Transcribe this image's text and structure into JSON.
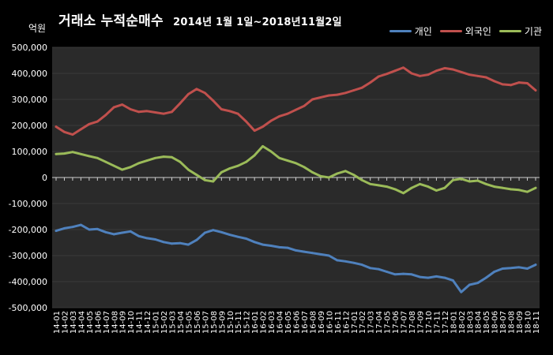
{
  "title": "거래소 누적순매수",
  "subtitle": "2014년 1월 1일~2018년11월2일",
  "unit": "억원",
  "colors": {
    "individual": "#4F81BD",
    "foreign": "#C0504D",
    "institution": "#9BBB59",
    "plot_bg": "#2a2a2a"
  },
  "legend": [
    {
      "label": "개인",
      "color": "#4F81BD"
    },
    {
      "label": "외국인",
      "color": "#C0504D"
    },
    {
      "label": "기관",
      "color": "#9BBB59"
    }
  ],
  "chart_data": {
    "type": "line",
    "title": "거래소 누적순매수 2014년 1월 1일~2018년11월2일",
    "ylabel": "억원",
    "ylim": [
      -500000,
      500000
    ],
    "yticks": [
      500000,
      400000,
      300000,
      200000,
      100000,
      0,
      -100000,
      -200000,
      -300000,
      -400000,
      -500000
    ],
    "ytick_labels": [
      "500,000",
      "400,000",
      "300,000",
      "200,000",
      "100,000",
      "0",
      "-100,000",
      "-200,000",
      "-300,000",
      "-400,000",
      "-500,000"
    ],
    "grid": "horizontal",
    "legend_position": "top-right",
    "categories": [
      "14-01",
      "14-02",
      "14-03",
      "14-04",
      "14-05",
      "14-06",
      "14-07",
      "14-08",
      "14-09",
      "14-10",
      "14-11",
      "14-12",
      "15-01",
      "15-02",
      "15-03",
      "15-04",
      "15-05",
      "15-06",
      "15-07",
      "15-08",
      "15-09",
      "15-10",
      "15-11",
      "15-12",
      "16-01",
      "16-02",
      "16-03",
      "16-04",
      "16-05",
      "16-06",
      "16-07",
      "16-08",
      "16-09",
      "16-10",
      "16-11",
      "16-12",
      "17-01",
      "17-02",
      "17-03",
      "17-04",
      "17-05",
      "17-06",
      "17-07",
      "17-08",
      "17-09",
      "17-10",
      "17-11",
      "17-12",
      "18-01",
      "18-02",
      "18-03",
      "18-04",
      "18-05",
      "18-06",
      "18-07",
      "18-08",
      "18-09",
      "18-10",
      "18-11"
    ],
    "series": [
      {
        "name": "개인",
        "key": "individual",
        "values": [
          -205000,
          -195000,
          -190000,
          -182000,
          -200000,
          -198000,
          -210000,
          -218000,
          -212000,
          -207000,
          -225000,
          -233000,
          -238000,
          -248000,
          -254000,
          -252000,
          -258000,
          -240000,
          -212000,
          -202000,
          -210000,
          -220000,
          -228000,
          -235000,
          -248000,
          -258000,
          -262000,
          -268000,
          -270000,
          -280000,
          -285000,
          -290000,
          -295000,
          -300000,
          -318000,
          -322000,
          -328000,
          -335000,
          -348000,
          -352000,
          -362000,
          -372000,
          -370000,
          -372000,
          -382000,
          -385000,
          -380000,
          -385000,
          -395000,
          -440000,
          -412000,
          -405000,
          -385000,
          -362000,
          -350000,
          -348000,
          -345000,
          -350000,
          -335000
        ]
      },
      {
        "name": "외국인",
        "key": "foreign",
        "values": [
          195000,
          175000,
          165000,
          185000,
          205000,
          215000,
          240000,
          270000,
          280000,
          262000,
          252000,
          255000,
          250000,
          245000,
          252000,
          285000,
          320000,
          340000,
          325000,
          295000,
          262000,
          255000,
          245000,
          215000,
          180000,
          195000,
          218000,
          235000,
          245000,
          260000,
          275000,
          300000,
          308000,
          315000,
          318000,
          325000,
          335000,
          345000,
          365000,
          388000,
          398000,
          410000,
          422000,
          400000,
          390000,
          395000,
          410000,
          420000,
          415000,
          405000,
          395000,
          390000,
          385000,
          370000,
          358000,
          355000,
          365000,
          362000,
          335000
        ]
      },
      {
        "name": "기관",
        "key": "institution",
        "values": [
          90000,
          92000,
          98000,
          90000,
          82000,
          75000,
          60000,
          45000,
          30000,
          40000,
          55000,
          65000,
          75000,
          80000,
          78000,
          60000,
          30000,
          10000,
          -10000,
          -15000,
          20000,
          35000,
          45000,
          60000,
          85000,
          120000,
          100000,
          75000,
          65000,
          55000,
          40000,
          20000,
          5000,
          0,
          15000,
          25000,
          10000,
          -10000,
          -25000,
          -30000,
          -35000,
          -45000,
          -60000,
          -40000,
          -25000,
          -35000,
          -50000,
          -40000,
          -10000,
          -5000,
          -15000,
          -12000,
          -25000,
          -35000,
          -40000,
          -45000,
          -48000,
          -55000,
          -40000
        ]
      }
    ]
  }
}
